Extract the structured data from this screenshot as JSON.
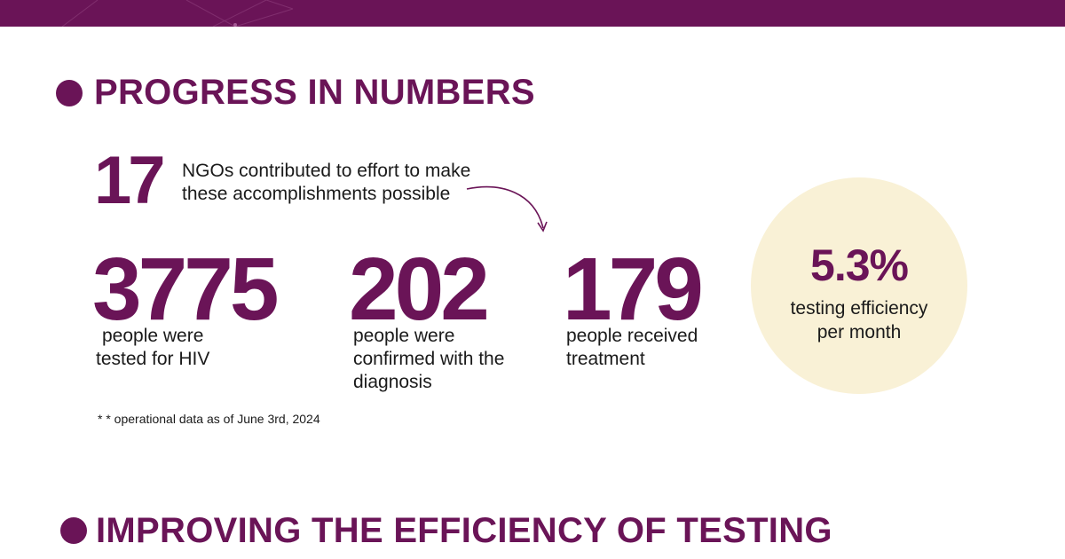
{
  "colors": {
    "brand": "#6a1457",
    "circle_fill": "#f9f1d6",
    "text": "#1a1a1a"
  },
  "sections": {
    "progress": {
      "title": "PROGRESS IN NUMBERS"
    },
    "efficiency": {
      "title": "IMPROVING THE EFFICIENCY OF TESTING"
    }
  },
  "ngos": {
    "value": "17",
    "line1": "NGOs contributed to effort to make",
    "line2": "these accomplishments possible"
  },
  "stats": [
    {
      "value": "3775",
      "line1": "people were",
      "line2": "tested for HIV"
    },
    {
      "value": "202",
      "line1": "people were",
      "line2": "confirmed with the",
      "line3": "diagnosis"
    },
    {
      "value": "179",
      "line1": "people received",
      "line2": "treatment"
    }
  ],
  "efficiency": {
    "value": "5.3%",
    "line1": "testing efficiency",
    "line2": "per month"
  },
  "footnote": "* * operational data as of June 3rd, 2024",
  "icons": [
    "curved-arrow-icon",
    "section-bullet-icon"
  ]
}
